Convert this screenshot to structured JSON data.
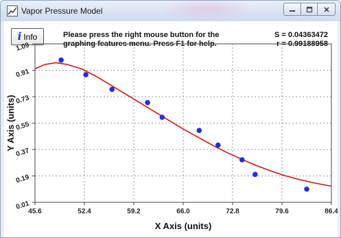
{
  "window": {
    "title": "Vapor Pressure Model"
  },
  "toolbar": {
    "info_label": "Info"
  },
  "message": {
    "line1": "Please press the right mouse button for the",
    "line2": "graphing features menu.  Press F1 for help."
  },
  "stats": {
    "s": "S = 0.04363472",
    "r": "r = 0.99188958"
  },
  "colors": {
    "point": "#1f2fe6",
    "curve": "#e01010",
    "grid": "#9a9a9a"
  },
  "chart_data": {
    "type": "scatter",
    "xlabel": "X Axis (units)",
    "ylabel": "Y Axis (units)",
    "xlim": [
      45.6,
      86.4
    ],
    "ylim": [
      0.01,
      1.09
    ],
    "x_ticks": [
      "45.6",
      "52.4",
      "59.2",
      "66.0",
      "72.8",
      "79.6",
      "86.4"
    ],
    "y_ticks": [
      "0.01",
      "0.19",
      "0.37",
      "0.55",
      "0.73",
      "0.91",
      "1.09"
    ],
    "grid": true,
    "series": [
      {
        "kind": "points",
        "x": [
          49.2,
          52.6,
          56.2,
          61.1,
          63.1,
          68.2,
          70.8,
          74.1,
          75.9,
          83.0
        ],
        "y": [
          0.98,
          0.88,
          0.78,
          0.69,
          0.59,
          0.5,
          0.4,
          0.3,
          0.2,
          0.1
        ]
      },
      {
        "kind": "fit-curve",
        "x": [
          45.6,
          47.0,
          48.5,
          50.0,
          52.0,
          54.0,
          56.0,
          58.0,
          60.0,
          62.0,
          64.0,
          66.0,
          68.0,
          70.0,
          72.0,
          74.0,
          76.0,
          78.0,
          80.0,
          82.0,
          84.0,
          86.4
        ],
        "y": [
          0.92,
          0.95,
          0.962,
          0.95,
          0.92,
          0.87,
          0.81,
          0.75,
          0.69,
          0.63,
          0.57,
          0.51,
          0.455,
          0.4,
          0.35,
          0.305,
          0.262,
          0.225,
          0.192,
          0.165,
          0.143,
          0.12
        ]
      }
    ]
  }
}
